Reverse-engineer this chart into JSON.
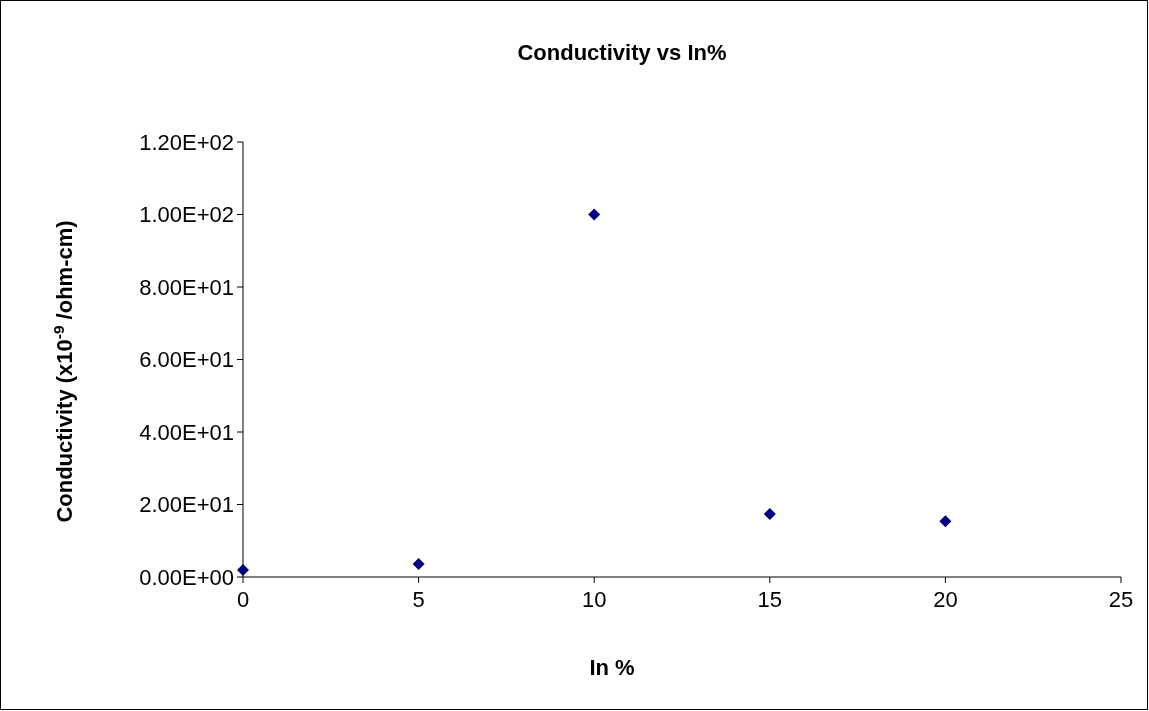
{
  "chart_data": {
    "type": "scatter",
    "title": "Conductivity vs In%",
    "xlabel": "In %",
    "ylabel": "Conductivity (x10$^{-9}$ /ohm-cm)",
    "x": [
      0,
      5,
      10,
      15,
      20
    ],
    "series": [
      {
        "color": "#000080",
        "values": [
          1.9,
          3.6,
          100,
          17.4,
          15.4
        ]
      }
    ],
    "xlim": [
      0,
      25
    ],
    "xticks": [
      0,
      5,
      10,
      15,
      20,
      25
    ],
    "ylim": [
      0,
      120
    ],
    "yticks": [
      {
        "value": 0,
        "label": "0.00E+00"
      },
      {
        "value": 20,
        "label": "2.00E+01"
      },
      {
        "value": 40,
        "label": "4.00E+01"
      },
      {
        "value": 60,
        "label": "6.00E+01"
      },
      {
        "value": 80,
        "label": "8.00E+01"
      },
      {
        "value": 100,
        "label": "1.00E+02"
      },
      {
        "value": 120,
        "label": "1.20E+02"
      }
    ],
    "marker": "diamond",
    "grid": false
  }
}
